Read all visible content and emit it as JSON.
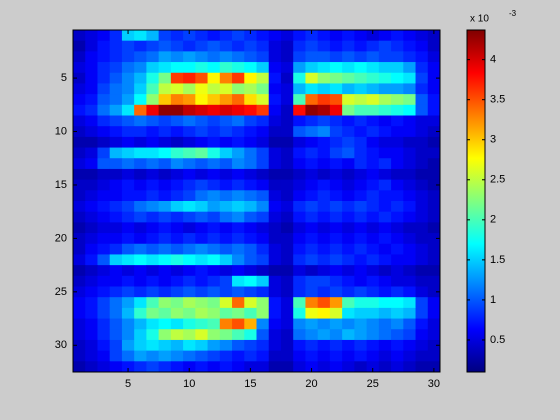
{
  "chart_data": {
    "type": "heatmap",
    "colormap": "jet",
    "xlim": [
      0.5,
      30.5
    ],
    "ylim": [
      0.5,
      32.5
    ],
    "y_reversed": true,
    "xticks": [
      5,
      10,
      15,
      20,
      25,
      30
    ],
    "yticks": [
      5,
      10,
      15,
      20,
      25,
      30
    ],
    "colorbar": {
      "clim": [
        0.1,
        4.37
      ],
      "ticks": [
        0.5,
        1,
        1.5,
        2,
        2.5,
        3,
        3.5,
        4
      ],
      "multiplier": {
        "base": "x 10",
        "exponent": "-3"
      }
    },
    "z": [
      [
        0.4,
        0.5,
        0.6,
        0.8,
        1.5,
        1.6,
        1.4,
        0.9,
        0.8,
        0.9,
        0.8,
        0.7,
        0.8,
        0.9,
        0.8,
        0.7,
        0.6,
        0.5,
        0.7,
        0.8,
        0.7,
        0.6,
        0.7,
        0.6,
        0.5,
        0.6,
        0.7,
        0.6,
        0.5,
        0.4
      ],
      [
        0.3,
        0.5,
        0.7,
        0.8,
        0.9,
        0.8,
        0.9,
        1.0,
        0.9,
        0.8,
        0.9,
        1.0,
        0.9,
        0.8,
        0.9,
        0.8,
        0.5,
        0.4,
        0.8,
        0.9,
        0.8,
        0.7,
        0.8,
        0.7,
        0.8,
        0.9,
        0.8,
        0.7,
        0.6,
        0.4
      ],
      [
        0.4,
        0.6,
        0.7,
        0.8,
        0.9,
        1.0,
        1.1,
        1.3,
        1.2,
        1.3,
        1.2,
        1.1,
        1.2,
        1.1,
        1.0,
        0.9,
        0.5,
        0.4,
        0.9,
        1.0,
        1.0,
        0.9,
        1.0,
        0.9,
        1.0,
        0.9,
        0.9,
        0.8,
        0.7,
        0.5
      ],
      [
        0.5,
        0.6,
        0.8,
        0.9,
        1.1,
        1.2,
        1.5,
        1.6,
        1.7,
        1.7,
        1.8,
        1.7,
        1.9,
        1.8,
        1.7,
        1.5,
        0.6,
        0.5,
        1.3,
        1.5,
        1.6,
        1.7,
        1.6,
        1.7,
        1.6,
        1.5,
        1.5,
        1.3,
        0.8,
        0.6
      ],
      [
        0.4,
        0.6,
        0.8,
        1.0,
        1.2,
        1.4,
        1.8,
        2.2,
        3.6,
        3.7,
        3.5,
        2.8,
        3.3,
        3.6,
        2.8,
        2.5,
        0.7,
        0.4,
        1.8,
        2.6,
        2.3,
        2.2,
        2.1,
        2.0,
        1.9,
        1.8,
        1.7,
        1.6,
        0.9,
        0.6
      ],
      [
        0.5,
        0.6,
        0.9,
        1.1,
        1.2,
        1.5,
        2.0,
        2.5,
        2.6,
        2.4,
        2.7,
        2.5,
        2.6,
        2.3,
        2.4,
        2.2,
        0.6,
        0.5,
        1.4,
        1.6,
        1.5,
        1.6,
        1.4,
        1.5,
        1.4,
        1.3,
        1.3,
        1.2,
        0.8,
        0.6
      ],
      [
        0.6,
        0.7,
        1.0,
        1.1,
        1.3,
        1.7,
        2.3,
        3.0,
        3.3,
        3.2,
        2.8,
        3.0,
        3.2,
        3.4,
        2.9,
        2.6,
        0.7,
        0.5,
        2.0,
        3.4,
        3.6,
        3.5,
        2.6,
        2.5,
        2.6,
        2.4,
        2.3,
        2.2,
        1.0,
        0.7
      ],
      [
        0.7,
        0.8,
        1.1,
        1.3,
        1.6,
        3.4,
        3.9,
        4.3,
        4.3,
        4.1,
        4.0,
        3.9,
        4.0,
        3.9,
        3.8,
        3.6,
        0.6,
        0.4,
        3.8,
        4.3,
        4.2,
        3.9,
        2.2,
        2.0,
        2.0,
        1.9,
        1.8,
        1.7,
        1.0,
        0.7
      ],
      [
        0.5,
        0.6,
        0.8,
        0.9,
        1.0,
        1.1,
        1.0,
        0.9,
        1.0,
        1.1,
        1.0,
        0.9,
        1.0,
        1.1,
        0.9,
        0.8,
        0.5,
        0.4,
        0.7,
        0.8,
        0.9,
        0.8,
        0.7,
        0.8,
        0.7,
        0.6,
        0.7,
        0.6,
        0.5,
        0.5
      ],
      [
        0.4,
        0.5,
        0.6,
        0.7,
        0.8,
        0.8,
        0.7,
        0.8,
        0.7,
        0.8,
        0.9,
        0.8,
        0.9,
        0.8,
        0.7,
        0.6,
        0.4,
        0.4,
        1.0,
        1.1,
        1.2,
        0.9,
        0.8,
        0.7,
        0.8,
        0.7,
        0.6,
        0.6,
        0.5,
        0.4
      ],
      [
        0.3,
        0.3,
        0.4,
        0.5,
        0.6,
        0.5,
        0.6,
        0.5,
        0.4,
        0.5,
        0.6,
        0.7,
        0.6,
        0.7,
        0.6,
        0.5,
        0.3,
        0.3,
        0.5,
        0.6,
        0.7,
        0.8,
        0.9,
        0.8,
        0.6,
        0.5,
        0.5,
        0.4,
        0.4,
        0.3
      ],
      [
        0.4,
        0.5,
        0.9,
        1.4,
        1.5,
        1.6,
        1.6,
        1.7,
        1.9,
        2.0,
        2.1,
        1.8,
        1.5,
        1.3,
        1.1,
        0.9,
        0.5,
        0.4,
        0.7,
        0.8,
        0.7,
        0.9,
        1.0,
        0.8,
        0.7,
        0.6,
        0.6,
        0.5,
        0.4,
        0.4
      ],
      [
        0.5,
        0.6,
        1.0,
        1.0,
        1.1,
        1.0,
        1.1,
        1.0,
        1.2,
        1.1,
        1.0,
        1.1,
        1.0,
        1.2,
        1.1,
        0.9,
        0.5,
        0.4,
        0.6,
        0.7,
        0.6,
        0.7,
        0.6,
        0.8,
        0.7,
        0.8,
        0.6,
        0.5,
        0.4,
        0.3
      ],
      [
        0.3,
        0.3,
        0.4,
        0.4,
        0.5,
        0.4,
        0.5,
        0.4,
        0.5,
        0.6,
        0.5,
        0.6,
        0.5,
        0.6,
        0.5,
        0.4,
        0.3,
        0.3,
        0.4,
        0.5,
        0.4,
        0.5,
        0.4,
        0.5,
        0.6,
        0.5,
        0.4,
        0.4,
        0.3,
        0.3
      ],
      [
        0.4,
        0.4,
        0.5,
        0.6,
        0.7,
        0.6,
        0.7,
        0.6,
        0.7,
        0.8,
        0.9,
        0.8,
        0.7,
        0.8,
        0.7,
        0.6,
        0.4,
        0.4,
        0.5,
        0.6,
        0.7,
        0.6,
        0.5,
        0.6,
        0.7,
        0.8,
        0.6,
        0.5,
        0.4,
        0.3
      ],
      [
        0.4,
        0.5,
        0.6,
        0.6,
        0.7,
        0.7,
        0.8,
        0.7,
        0.8,
        0.9,
        1.1,
        1.2,
        1.1,
        1.2,
        1.1,
        1.0,
        0.5,
        0.4,
        0.6,
        0.7,
        0.8,
        0.7,
        0.6,
        0.7,
        0.8,
        0.7,
        0.7,
        0.6,
        0.5,
        0.4
      ],
      [
        0.5,
        0.6,
        0.7,
        0.8,
        0.9,
        1.1,
        1.2,
        1.3,
        1.5,
        1.6,
        1.5,
        1.3,
        1.4,
        1.5,
        1.4,
        1.2,
        0.6,
        0.5,
        0.8,
        0.9,
        0.8,
        0.9,
        0.8,
        0.9,
        0.8,
        0.7,
        0.8,
        0.7,
        0.5,
        0.4
      ],
      [
        0.4,
        0.5,
        0.6,
        0.7,
        0.8,
        0.9,
        0.8,
        0.9,
        0.8,
        0.9,
        1.0,
        0.9,
        1.1,
        1.2,
        1.0,
        0.9,
        0.5,
        0.4,
        0.7,
        0.8,
        0.7,
        0.8,
        0.7,
        0.8,
        0.7,
        0.8,
        0.7,
        0.6,
        0.5,
        0.4
      ],
      [
        0.3,
        0.4,
        0.5,
        0.5,
        0.6,
        0.5,
        0.6,
        0.7,
        0.6,
        0.5,
        0.6,
        0.7,
        0.6,
        0.7,
        0.6,
        0.5,
        0.4,
        0.3,
        0.5,
        0.6,
        0.5,
        0.6,
        0.5,
        0.6,
        0.5,
        0.6,
        0.5,
        0.4,
        0.4,
        0.3
      ],
      [
        0.4,
        0.5,
        0.6,
        0.6,
        0.7,
        0.6,
        0.7,
        0.8,
        0.7,
        0.8,
        0.7,
        0.8,
        0.7,
        0.8,
        0.7,
        0.6,
        0.4,
        0.4,
        0.6,
        0.7,
        0.6,
        0.7,
        0.6,
        0.7,
        0.6,
        0.7,
        0.6,
        0.5,
        0.4,
        0.4
      ],
      [
        0.4,
        0.6,
        0.7,
        0.8,
        1.0,
        1.1,
        1.0,
        1.1,
        1.0,
        1.1,
        1.2,
        1.1,
        1.0,
        1.1,
        1.0,
        0.8,
        0.5,
        0.4,
        0.7,
        0.8,
        0.7,
        0.8,
        0.7,
        0.8,
        0.7,
        0.6,
        0.7,
        0.6,
        0.5,
        0.4
      ],
      [
        0.5,
        0.7,
        1.0,
        1.5,
        1.6,
        1.7,
        1.6,
        1.7,
        1.8,
        1.7,
        1.6,
        1.7,
        1.5,
        1.2,
        1.0,
        0.9,
        0.5,
        0.4,
        0.8,
        0.9,
        0.8,
        0.9,
        0.8,
        0.7,
        0.8,
        0.7,
        0.6,
        0.6,
        0.5,
        0.4
      ],
      [
        0.3,
        0.4,
        0.5,
        0.6,
        0.5,
        0.6,
        0.5,
        0.6,
        0.5,
        0.6,
        0.7,
        0.6,
        0.5,
        0.6,
        0.5,
        0.4,
        0.3,
        0.3,
        0.5,
        0.4,
        0.5,
        0.6,
        0.5,
        0.6,
        0.5,
        0.4,
        0.5,
        0.4,
        0.3,
        0.3
      ],
      [
        0.4,
        0.5,
        0.6,
        0.6,
        0.7,
        0.6,
        0.7,
        0.6,
        0.7,
        0.8,
        0.7,
        0.8,
        0.9,
        1.6,
        1.7,
        1.5,
        0.5,
        0.4,
        0.8,
        0.9,
        0.9,
        0.8,
        0.7,
        0.6,
        0.7,
        0.6,
        0.5,
        0.5,
        0.4,
        0.4
      ],
      [
        0.5,
        0.6,
        0.7,
        0.8,
        0.9,
        0.8,
        0.9,
        0.8,
        0.9,
        1.0,
        0.9,
        1.0,
        0.9,
        1.0,
        0.9,
        0.8,
        0.5,
        0.4,
        0.8,
        0.9,
        0.8,
        0.9,
        0.8,
        0.9,
        0.8,
        0.7,
        0.8,
        0.7,
        0.5,
        0.4
      ],
      [
        0.6,
        0.7,
        0.9,
        1.1,
        1.3,
        1.6,
        2.0,
        2.3,
        2.2,
        2.4,
        2.3,
        2.2,
        2.6,
        3.4,
        2.6,
        2.3,
        0.7,
        0.5,
        2.0,
        3.3,
        3.5,
        3.2,
        2.0,
        1.8,
        1.8,
        1.7,
        1.7,
        1.6,
        0.9,
        0.6
      ],
      [
        0.6,
        0.7,
        0.9,
        1.1,
        1.4,
        1.9,
        2.2,
        2.1,
        2.3,
        2.2,
        2.4,
        2.3,
        2.1,
        2.2,
        2.0,
        2.3,
        0.7,
        0.5,
        1.8,
        2.7,
        2.8,
        2.6,
        1.6,
        1.5,
        1.5,
        1.4,
        1.5,
        1.4,
        0.9,
        0.6
      ],
      [
        0.5,
        0.6,
        0.8,
        1.0,
        1.2,
        1.4,
        1.6,
        1.7,
        1.6,
        1.8,
        1.9,
        2.0,
        3.3,
        3.5,
        3.1,
        1.2,
        0.6,
        0.5,
        1.2,
        1.3,
        1.2,
        1.3,
        1.2,
        1.3,
        1.2,
        1.1,
        1.2,
        1.0,
        0.7,
        0.5
      ],
      [
        0.5,
        0.6,
        0.8,
        1.0,
        1.2,
        1.5,
        1.8,
        2.3,
        2.5,
        2.4,
        2.6,
        2.3,
        2.2,
        2.0,
        1.8,
        1.0,
        0.5,
        0.4,
        1.1,
        1.2,
        1.3,
        1.2,
        1.4,
        1.3,
        1.2,
        1.1,
        1.0,
        0.9,
        0.6,
        0.5
      ],
      [
        0.4,
        0.5,
        0.7,
        0.9,
        1.3,
        1.5,
        1.6,
        1.5,
        1.4,
        1.6,
        1.5,
        1.3,
        1.2,
        1.0,
        0.9,
        0.8,
        0.5,
        0.4,
        0.7,
        0.8,
        0.7,
        0.8,
        0.7,
        0.8,
        0.7,
        0.6,
        0.7,
        0.6,
        0.5,
        0.4
      ],
      [
        0.4,
        0.5,
        0.6,
        0.9,
        1.1,
        1.3,
        1.2,
        1.3,
        1.2,
        1.1,
        1.0,
        0.9,
        0.8,
        0.7,
        0.8,
        0.7,
        0.4,
        0.4,
        0.6,
        0.7,
        0.6,
        0.7,
        0.6,
        0.7,
        0.6,
        0.5,
        0.6,
        0.5,
        0.4,
        0.4
      ],
      [
        0.3,
        0.4,
        0.5,
        0.6,
        0.7,
        0.8,
        0.9,
        0.8,
        0.7,
        0.6,
        0.7,
        0.6,
        0.7,
        0.6,
        0.5,
        0.5,
        0.3,
        0.3,
        0.5,
        0.6,
        0.5,
        0.6,
        0.5,
        0.4,
        0.5,
        0.4,
        0.5,
        0.4,
        0.3,
        0.3
      ]
    ]
  }
}
